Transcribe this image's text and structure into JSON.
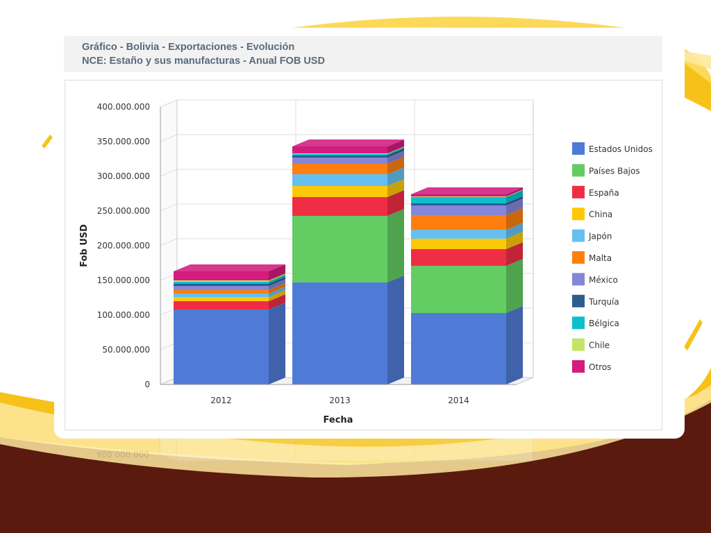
{
  "header": {
    "title_line1": "Gráfico - Bolivia - Exportaciones - Evolución",
    "title_line2": "NCE: Estaño y sus manufacturas - Anual FOB USD"
  },
  "chart_data": {
    "type": "bar",
    "stacked": true,
    "three_d": true,
    "categories": [
      "2012",
      "2013",
      "2014"
    ],
    "xlabel": "Fecha",
    "ylabel": "Fob USD",
    "ylim": [
      0,
      400000000
    ],
    "yticks": [
      0,
      50000000,
      100000000,
      150000000,
      200000000,
      250000000,
      300000000,
      350000000,
      400000000
    ],
    "ytick_labels": [
      "0",
      "50.000.000",
      "100.000.000",
      "150.000.000",
      "200.000.000",
      "250.000.000",
      "300.000.000",
      "350.000.000",
      "400.000.000"
    ],
    "grid": true,
    "legend_position": "right",
    "series": [
      {
        "name": "Estados Unidos",
        "color": "#4f7bd6",
        "values": [
          108000000,
          147000000,
          103000000
        ]
      },
      {
        "name": "Países Bajos",
        "color": "#63cc63",
        "values": [
          0,
          96000000,
          68000000
        ]
      },
      {
        "name": "España",
        "color": "#ef2e44",
        "values": [
          12000000,
          27000000,
          24000000
        ]
      },
      {
        "name": "China",
        "color": "#fdc80a",
        "values": [
          6000000,
          16000000,
          15000000
        ]
      },
      {
        "name": "Japón",
        "color": "#66c0ef",
        "values": [
          5000000,
          17000000,
          13000000
        ]
      },
      {
        "name": "Malta",
        "color": "#ff7f0e",
        "values": [
          5000000,
          15000000,
          21000000
        ]
      },
      {
        "name": "México",
        "color": "#8487d8",
        "values": [
          6000000,
          9000000,
          14000000
        ]
      },
      {
        "name": "Turquía",
        "color": "#2c5d8f",
        "values": [
          3000000,
          3000000,
          3000000
        ]
      },
      {
        "name": "Bélgica",
        "color": "#0bbfce",
        "values": [
          3000000,
          2000000,
          9000000
        ]
      },
      {
        "name": "Chile",
        "color": "#c4e466",
        "values": [
          2000000,
          1000000,
          1000000
        ]
      },
      {
        "name": "Otros",
        "color": "#d21c7e",
        "values": [
          13000000,
          10000000,
          3000000
        ]
      }
    ]
  }
}
